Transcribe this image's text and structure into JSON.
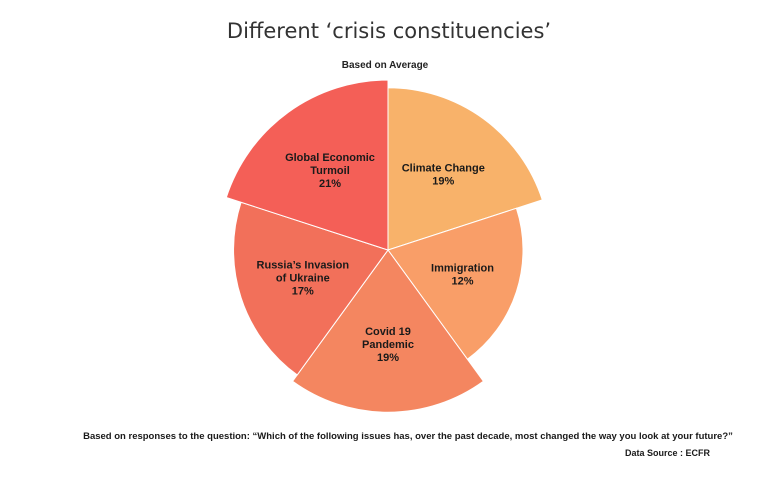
{
  "chart_data": {
    "type": "pie",
    "variant": "variable-radius",
    "title": "Different ‘crisis constituencies’",
    "subtitle": "Based on Average",
    "caption": "Based on responses to the question: “Which of the following issues has, over the past decade, most changed the way you look at your future?”",
    "source": "Data Source : ECFR",
    "slices": [
      {
        "name": "Climate Change",
        "label_lines": [
          "Climate Change"
        ],
        "percent_label": "19%",
        "value": 19,
        "color": "#f8b26a"
      },
      {
        "name": "Immigration",
        "label_lines": [
          "Immigration"
        ],
        "percent_label": "12%",
        "value": 12,
        "color": "#f99e68"
      },
      {
        "name": "Covid 19 Pandemic",
        "label_lines": [
          "Covid 19",
          "Pandemic"
        ],
        "percent_label": "19%",
        "value": 19,
        "color": "#f48660"
      },
      {
        "name": "Russia’s Invasion of Ukraine",
        "label_lines": [
          "Russia’s Invasion",
          "of Ukraine"
        ],
        "percent_label": "17%",
        "value": 17,
        "color": "#f2705a"
      },
      {
        "name": "Global Economic Turmoil",
        "label_lines": [
          "Global Economic",
          "Turmoil"
        ],
        "percent_label": "21%",
        "value": 21,
        "color": "#f45f57"
      }
    ]
  }
}
